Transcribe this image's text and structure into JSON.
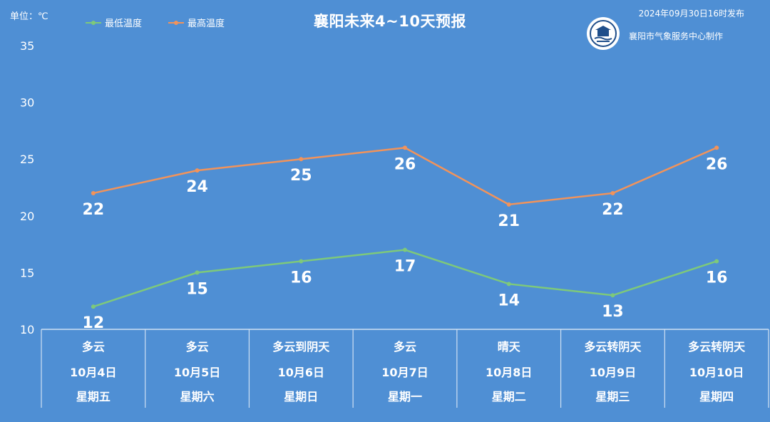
{
  "header": {
    "unit": "单位：℃",
    "title": "襄阳未来4~10天预报",
    "publish_time": "2024年09月30日16时发布",
    "producer": "襄阳市气象服务中心制作"
  },
  "colors": {
    "background": "#4f8fd4",
    "low_line": "#7ec97a",
    "high_line": "#f2935a",
    "text": "#ffffff"
  },
  "chart_data": {
    "type": "line",
    "title": "襄阳未来4~10天预报",
    "ylabel": "单位：℃",
    "ylim": [
      10,
      35
    ],
    "yticks": [
      10,
      15,
      20,
      25,
      30,
      35
    ],
    "legend_position": "top-left",
    "grid": false,
    "categories": [
      "10月4日",
      "10月5日",
      "10月6日",
      "10月7日",
      "10月8日",
      "10月9日",
      "10月10日"
    ],
    "weather": [
      "多云",
      "多云",
      "多云到阴天",
      "多云",
      "晴天",
      "多云转阴天",
      "多云转阴天"
    ],
    "weekdays": [
      "星期五",
      "星期六",
      "星期日",
      "星期一",
      "星期二",
      "星期三",
      "星期四"
    ],
    "series": [
      {
        "name": "最低温度",
        "values": [
          12,
          15,
          16,
          17,
          14,
          13,
          16
        ]
      },
      {
        "name": "最高温度",
        "values": [
          22,
          24,
          25,
          26,
          21,
          22,
          26
        ]
      }
    ]
  }
}
